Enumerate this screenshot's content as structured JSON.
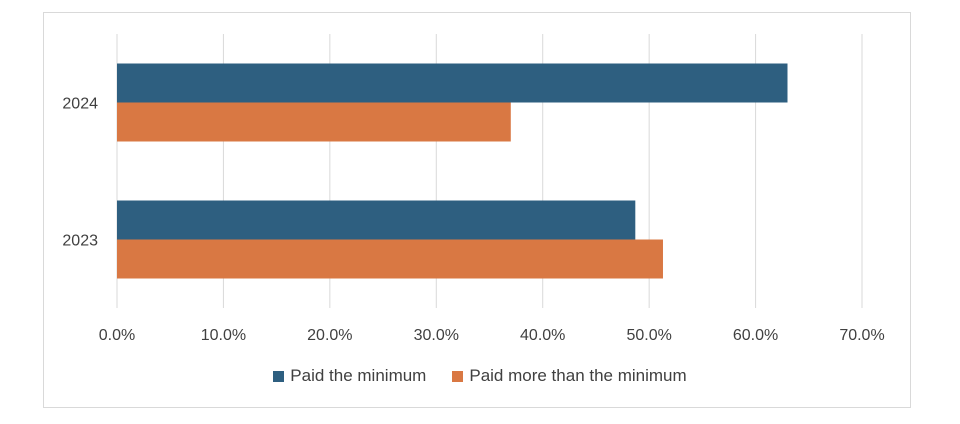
{
  "chart_data": {
    "type": "bar",
    "orientation": "horizontal",
    "categories": [
      "2024",
      "2023"
    ],
    "series": [
      {
        "name": "Paid the minimum",
        "color": "#2e5f80",
        "values": [
          63.0,
          48.7
        ]
      },
      {
        "name": "Paid more than the minimum",
        "color": "#d97843",
        "values": [
          37.0,
          51.3
        ]
      }
    ],
    "xlim": [
      0,
      70
    ],
    "xticks": [
      "0.0%",
      "10.0%",
      "20.0%",
      "30.0%",
      "40.0%",
      "50.0%",
      "60.0%",
      "70.0%"
    ],
    "grid": true,
    "legend_position": "bottom"
  }
}
